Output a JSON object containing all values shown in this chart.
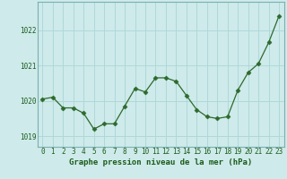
{
  "x": [
    0,
    1,
    2,
    3,
    4,
    5,
    6,
    7,
    8,
    9,
    10,
    11,
    12,
    13,
    14,
    15,
    16,
    17,
    18,
    19,
    20,
    21,
    22,
    23
  ],
  "y": [
    1020.05,
    1020.1,
    1019.8,
    1019.8,
    1019.65,
    1019.2,
    1019.35,
    1019.35,
    1019.85,
    1020.35,
    1020.25,
    1020.65,
    1020.65,
    1020.55,
    1020.15,
    1019.75,
    1019.55,
    1019.5,
    1019.55,
    1020.3,
    1020.8,
    1021.05,
    1021.65,
    1022.4
  ],
  "line_color": "#2d6a2d",
  "marker": "D",
  "marker_size": 2.5,
  "background_color": "#ceeaea",
  "grid_color": "#b0d8d8",
  "xlabel": "Graphe pression niveau de la mer (hPa)",
  "xlabel_color": "#1a5c1a",
  "xlabel_fontsize": 6.5,
  "tick_color": "#1a5c1a",
  "tick_fontsize": 5.5,
  "ylim": [
    1018.7,
    1022.8
  ],
  "yticks": [
    1019,
    1020,
    1021,
    1022
  ],
  "xlim": [
    -0.5,
    23.5
  ],
  "xticks": [
    0,
    1,
    2,
    3,
    4,
    5,
    6,
    7,
    8,
    9,
    10,
    11,
    12,
    13,
    14,
    15,
    16,
    17,
    18,
    19,
    20,
    21,
    22,
    23
  ]
}
